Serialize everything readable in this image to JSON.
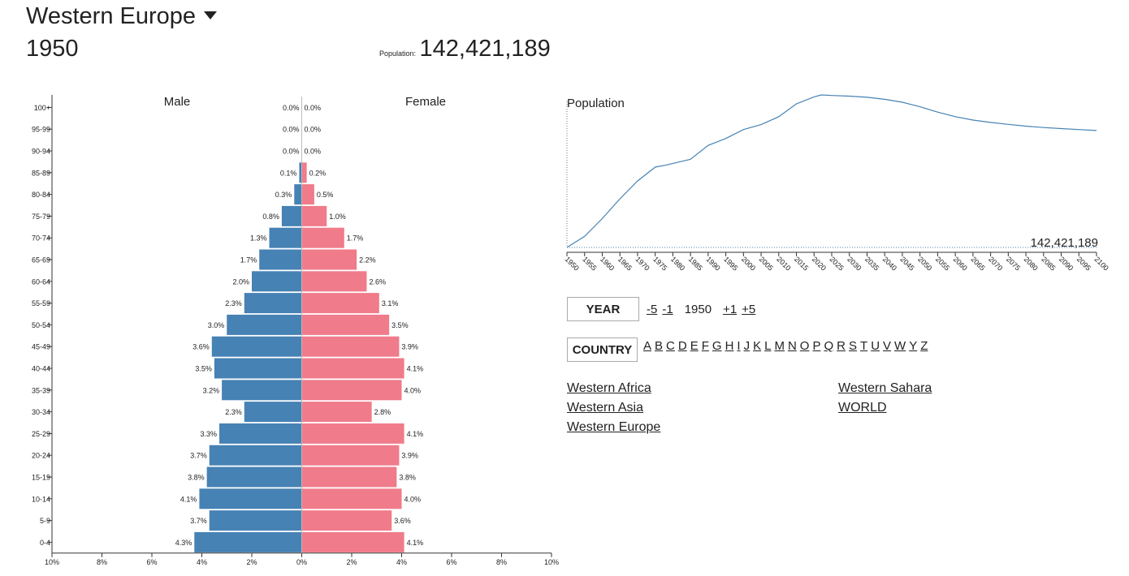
{
  "header": {
    "region": "Western Europe",
    "year": "1950",
    "population_label": "Population:",
    "population_value": "142,421,189"
  },
  "chart_data": [
    {
      "type": "bar",
      "orientation": "horizontal",
      "categories": [
        "100+",
        "95-99",
        "90-94",
        "85-89",
        "80-84",
        "75-79",
        "70-74",
        "65-69",
        "60-64",
        "55-59",
        "50-54",
        "45-49",
        "40-44",
        "35-39",
        "30-34",
        "25-29",
        "20-24",
        "15-19",
        "10-14",
        "5-9",
        "0-4"
      ],
      "series": [
        {
          "name": "Male",
          "values": [
            0.0,
            0.0,
            0.0,
            0.1,
            0.3,
            0.8,
            1.3,
            1.7,
            2.0,
            2.3,
            3.0,
            3.6,
            3.5,
            3.2,
            2.3,
            3.3,
            3.7,
            3.8,
            4.1,
            3.7,
            4.3
          ],
          "color": "#4682b4"
        },
        {
          "name": "Female",
          "values": [
            0.0,
            0.0,
            0.0,
            0.2,
            0.5,
            1.0,
            1.7,
            2.2,
            2.6,
            3.1,
            3.5,
            3.9,
            4.1,
            4.0,
            2.8,
            4.1,
            3.9,
            3.8,
            4.0,
            3.6,
            4.1
          ],
          "color": "#f07b8a"
        }
      ],
      "value_labels": {
        "male": [
          "0.0%",
          "0.0%",
          "0.0%",
          "0.1%",
          "0.3%",
          "0.8%",
          "1.3%",
          "1.7%",
          "2.0%",
          "2.3%",
          "3.0%",
          "3.6%",
          "3.5%",
          "3.2%",
          "2.3%",
          "3.3%",
          "3.7%",
          "3.8%",
          "4.1%",
          "3.7%",
          "4.3%"
        ],
        "female": [
          "0.0%",
          "0.0%",
          "0.0%",
          "0.2%",
          "0.5%",
          "1.0%",
          "1.7%",
          "2.2%",
          "2.6%",
          "3.1%",
          "3.5%",
          "3.9%",
          "4.1%",
          "4.0%",
          "2.8%",
          "4.1%",
          "3.9%",
          "3.8%",
          "4.0%",
          "3.6%",
          "4.1%"
        ]
      },
      "x_ticks": [
        "10%",
        "8%",
        "6%",
        "4%",
        "2%",
        "0%",
        "2%",
        "4%",
        "6%",
        "8%",
        "10%"
      ],
      "xlim": [
        -10,
        10
      ]
    },
    {
      "type": "line",
      "title": "Population",
      "x": [
        1950,
        1955,
        1960,
        1965,
        1970,
        1975,
        1978,
        1985,
        1990,
        1995,
        2000,
        2005,
        2010,
        2015,
        2020,
        2022,
        2025,
        2030,
        2035,
        2040,
        2045,
        2050,
        2055,
        2060,
        2065,
        2070,
        2075,
        2080,
        2085,
        2090,
        2095,
        2100
      ],
      "values": [
        142421189,
        148000000,
        157000000,
        167000000,
        176000000,
        183000000,
        184000000,
        187000000,
        194000000,
        197500000,
        202000000,
        204500000,
        208500000,
        215000000,
        218500000,
        219500000,
        219200000,
        218900000,
        218300000,
        217300000,
        215800000,
        213500000,
        210800000,
        208500000,
        206800000,
        205600000,
        204600000,
        203700000,
        203000000,
        202500000,
        202000000,
        201500000
      ],
      "x_ticks": [
        "1950",
        "1955",
        "1960",
        "1965",
        "1970",
        "1975",
        "1980",
        "1985",
        "1990",
        "1995",
        "2000",
        "2005",
        "2010",
        "2015",
        "2020",
        "2025",
        "2030",
        "2035",
        "2040",
        "2045",
        "2050",
        "2055",
        "2060",
        "2065",
        "2070",
        "2075",
        "2080",
        "2085",
        "2090",
        "2095",
        "2100"
      ],
      "xlim": [
        1950,
        2100
      ],
      "current_year_value": "142,421,189",
      "color": "#4682b4"
    }
  ],
  "controls": {
    "year_label": "YEAR",
    "minus5": "-5",
    "minus1": "-1",
    "current_year": "1950",
    "plus1": "+1",
    "plus5": "+5",
    "country_label": "COUNTRY",
    "letters": [
      "A",
      "B",
      "C",
      "D",
      "E",
      "F",
      "G",
      "H",
      "I",
      "J",
      "K",
      "L",
      "M",
      "N",
      "O",
      "P",
      "Q",
      "R",
      "S",
      "T",
      "U",
      "V",
      "W",
      "Y",
      "Z"
    ]
  },
  "country_list": {
    "col1": [
      "Western Africa",
      "Western Asia",
      "Western Europe"
    ],
    "col2": [
      "Western Sahara",
      "WORLD"
    ]
  }
}
